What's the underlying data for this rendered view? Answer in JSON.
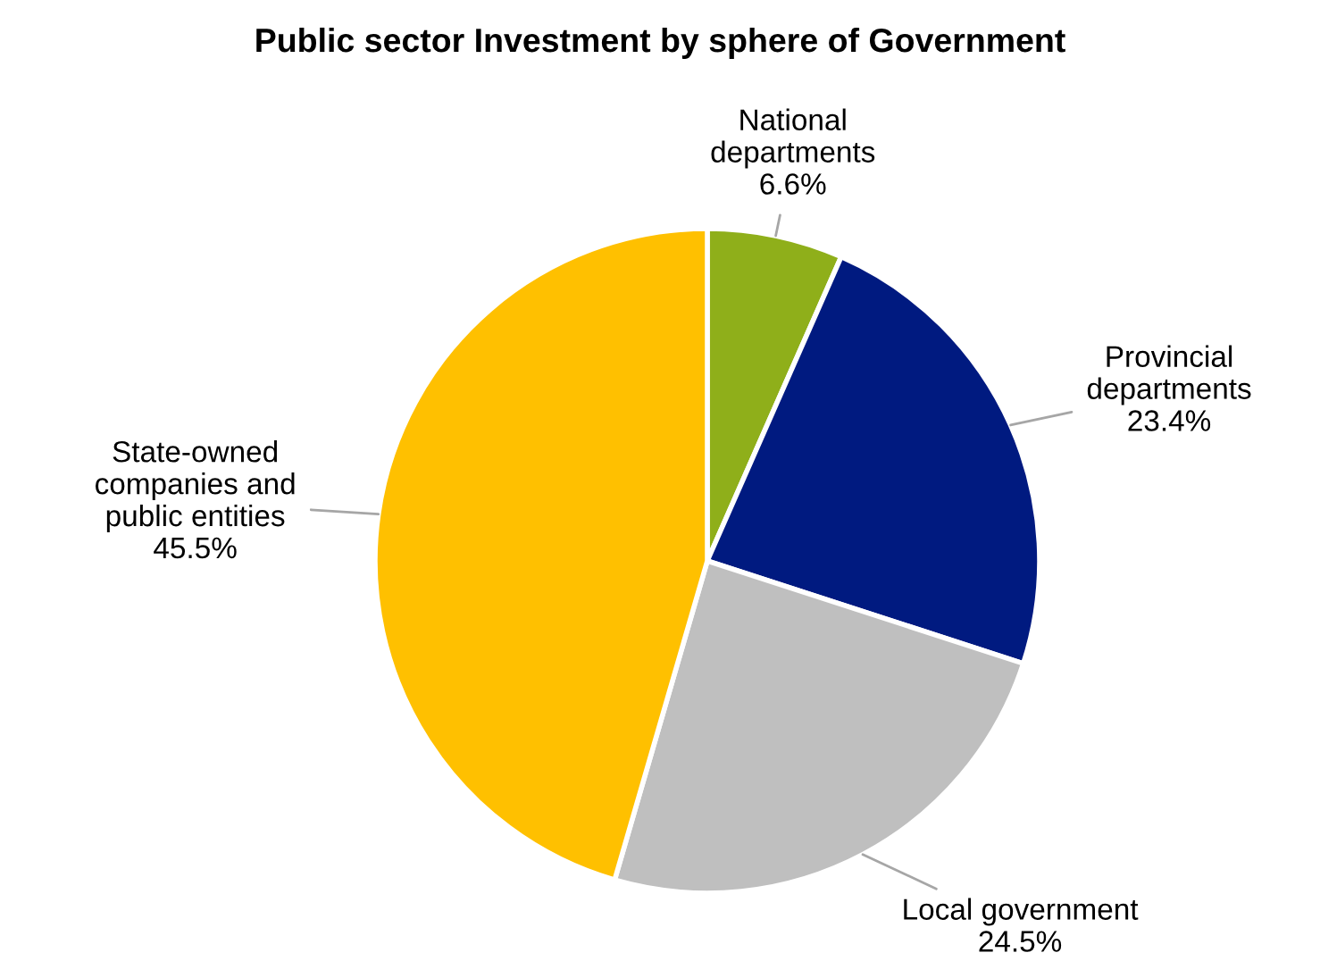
{
  "chart_data": {
    "type": "pie",
    "title": "Public sector Investment by sphere of Government",
    "categories": [
      "National\ndepartments",
      "Provincial\ndepartments",
      "Local government",
      "State-owned\ncompanies and\npublic entities"
    ],
    "values": [
      6.6,
      23.4,
      24.5,
      45.5
    ],
    "colors": [
      "#8faf1a",
      "#001a80",
      "#bfbfbf",
      "#ffc000"
    ],
    "value_labels": [
      "6.6%",
      "23.4%",
      "24.5%",
      "45.5%"
    ],
    "legend": false
  }
}
